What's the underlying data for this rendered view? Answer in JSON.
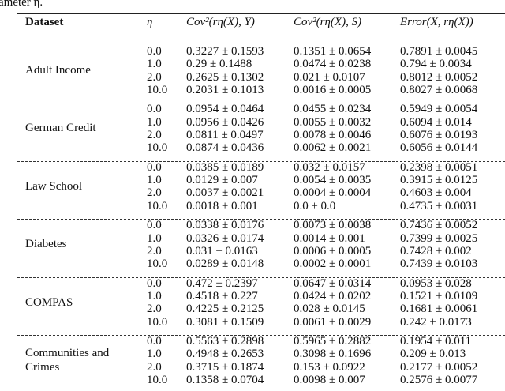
{
  "caption_fragment": "ameter η.",
  "header": [
    "Dataset",
    "η",
    "Cov²(rη(X), Y)",
    "Cov²(rη(X), S)",
    "Error(X, rη(X))"
  ],
  "groups": [
    {
      "dataset": "Adult Income",
      "rows": [
        [
          "0.0",
          "0.3227 ± 0.1593",
          "0.1351 ± 0.0654",
          "0.7891 ± 0.0045"
        ],
        [
          "1.0",
          "0.29 ± 0.1488",
          "0.0474 ± 0.0238",
          "0.794 ± 0.0034"
        ],
        [
          "2.0",
          "0.2625 ± 0.1302",
          "0.021 ± 0.0107",
          "0.8012 ± 0.0052"
        ],
        [
          "10.0",
          "0.2031 ± 0.1013",
          "0.0016 ± 0.0005",
          "0.8027 ± 0.0068"
        ]
      ]
    },
    {
      "dataset": "German Credit",
      "rows": [
        [
          "0.0",
          "0.0954 ± 0.0464",
          "0.0455 ± 0.0234",
          "0.5949 ± 0.0054"
        ],
        [
          "1.0",
          "0.0956 ± 0.0426",
          "0.0055 ± 0.0032",
          "0.6094 ± 0.014"
        ],
        [
          "2.0",
          "0.0811 ± 0.0497",
          "0.0078 ± 0.0046",
          "0.6076 ± 0.0193"
        ],
        [
          "10.0",
          "0.0874 ± 0.0436",
          "0.0062 ± 0.0021",
          "0.6056 ± 0.0144"
        ]
      ]
    },
    {
      "dataset": "Law School",
      "rows": [
        [
          "0.0",
          "0.0385 ± 0.0189",
          "0.032 ± 0.0157",
          "0.2398 ± 0.0051"
        ],
        [
          "1.0",
          "0.0129 ± 0.007",
          "0.0054 ± 0.0035",
          "0.3915 ± 0.0125"
        ],
        [
          "2.0",
          "0.0037 ± 0.0021",
          "0.0004 ± 0.0004",
          "0.4603 ± 0.004"
        ],
        [
          "10.0",
          "0.0018 ± 0.001",
          "0.0 ± 0.0",
          "0.4735 ± 0.0031"
        ]
      ]
    },
    {
      "dataset": "Diabetes",
      "rows": [
        [
          "0.0",
          "0.0338 ± 0.0176",
          "0.0073 ± 0.0038",
          "0.7436 ± 0.0052"
        ],
        [
          "1.0",
          "0.0326 ± 0.0174",
          "0.0014 ± 0.001",
          "0.7399 ± 0.0025"
        ],
        [
          "2.0",
          "0.031 ± 0.0163",
          "0.0006 ± 0.0005",
          "0.7428 ± 0.002"
        ],
        [
          "10.0",
          "0.0289 ± 0.0148",
          "0.0002 ± 0.0001",
          "0.7439 ± 0.0103"
        ]
      ]
    },
    {
      "dataset": "COMPAS",
      "rows": [
        [
          "0.0",
          "0.472 ± 0.2397",
          "0.0647 ± 0.0314",
          "0.0953 ± 0.028"
        ],
        [
          "1.0",
          "0.4518 ± 0.227",
          "0.0424 ± 0.0202",
          "0.1521 ± 0.0109"
        ],
        [
          "2.0",
          "0.4225 ± 0.2125",
          "0.028 ± 0.0145",
          "0.1681 ± 0.0061"
        ],
        [
          "10.0",
          "0.3081 ± 0.1509",
          "0.0061 ± 0.0029",
          "0.242 ± 0.0173"
        ]
      ]
    },
    {
      "dataset": "Communities and Crimes",
      "rows": [
        [
          "0.0",
          "0.5563 ± 0.2898",
          "0.5965 ± 0.2882",
          "0.1954 ± 0.011"
        ],
        [
          "1.0",
          "0.4948 ± 0.2653",
          "0.3098 ± 0.1696",
          "0.209 ± 0.013"
        ],
        [
          "2.0",
          "0.3715 ± 0.1874",
          "0.153 ± 0.0922",
          "0.2177 ± 0.0052"
        ],
        [
          "10.0",
          "0.1358 ± 0.0704",
          "0.0098 ± 0.007",
          "0.2576 ± 0.0077"
        ]
      ]
    }
  ]
}
